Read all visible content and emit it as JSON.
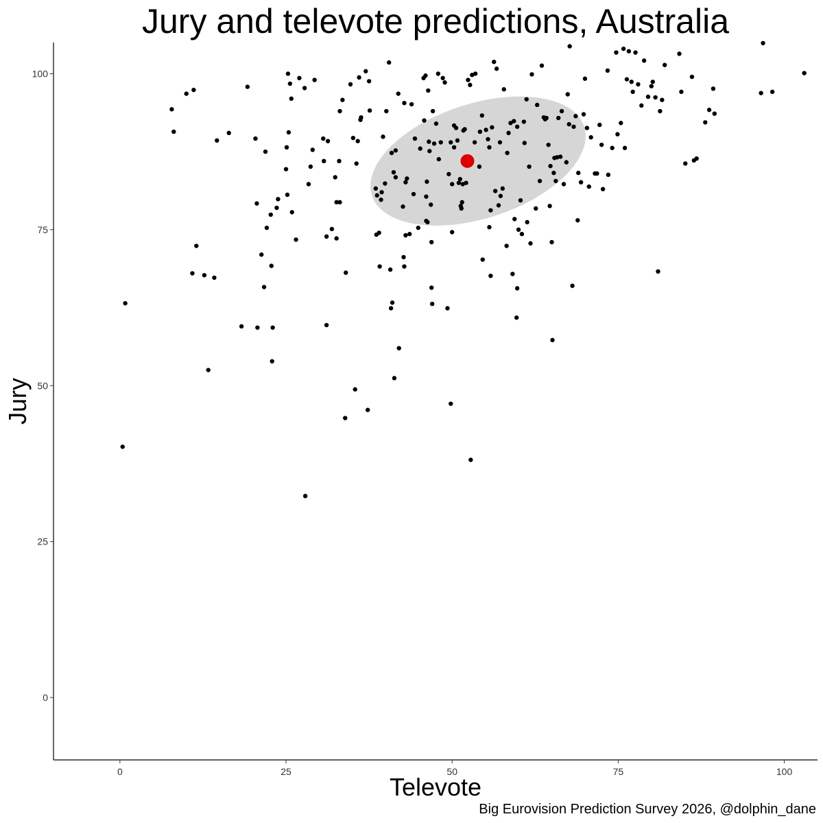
{
  "chart_data": {
    "type": "scatter",
    "title": "Jury and televote predictions, Australia",
    "xlabel": "Televote",
    "ylabel": "Jury",
    "caption": "Big Eurovision Prediction Survey 2026, @dolphin_dane",
    "xlim": [
      -10,
      105
    ],
    "ylim": [
      -10,
      105
    ],
    "xticks": [
      0,
      25,
      50,
      75,
      100
    ],
    "yticks": [
      0,
      25,
      50,
      75,
      100
    ],
    "grid": false,
    "colors": {
      "points": "#000000",
      "mean": "#dd0000",
      "ellipse": "#d6d6d6"
    },
    "mean": {
      "x": 52.3,
      "y": 86.0
    },
    "ellipse": {
      "cx": 53.9,
      "cy": 86.0,
      "rx": 16.8,
      "ry": 9.2,
      "angle_deg": 18
    },
    "points": [
      [
        0.4,
        40.2
      ],
      [
        0.8,
        63.2
      ],
      [
        7.8,
        94.3
      ],
      [
        8.1,
        90.7
      ],
      [
        10.0,
        96.8
      ],
      [
        10.9,
        68.0
      ],
      [
        11.1,
        97.4
      ],
      [
        11.5,
        72.4
      ],
      [
        12.7,
        67.7
      ],
      [
        13.3,
        52.5
      ],
      [
        14.2,
        67.3
      ],
      [
        14.6,
        89.3
      ],
      [
        16.4,
        90.5
      ],
      [
        18.3,
        59.5
      ],
      [
        19.2,
        97.9
      ],
      [
        20.4,
        89.6
      ],
      [
        20.6,
        79.2
      ],
      [
        20.7,
        59.3
      ],
      [
        21.3,
        71.0
      ],
      [
        21.7,
        65.8
      ],
      [
        21.9,
        87.5
      ],
      [
        22.1,
        75.3
      ],
      [
        22.7,
        77.4
      ],
      [
        22.8,
        69.2
      ],
      [
        23.0,
        59.3
      ],
      [
        22.9,
        53.9
      ],
      [
        23.6,
        78.5
      ],
      [
        23.8,
        79.9
      ],
      [
        25.0,
        84.7
      ],
      [
        25.1,
        88.2
      ],
      [
        25.2,
        80.6
      ],
      [
        25.3,
        100.0
      ],
      [
        25.4,
        90.6
      ],
      [
        25.6,
        98.4
      ],
      [
        25.8,
        96.0
      ],
      [
        25.9,
        77.8
      ],
      [
        26.5,
        73.4
      ],
      [
        27.0,
        99.3
      ],
      [
        27.8,
        97.7
      ],
      [
        27.9,
        32.3
      ],
      [
        28.4,
        82.3
      ],
      [
        28.7,
        85.1
      ],
      [
        29.0,
        87.8
      ],
      [
        29.3,
        99.0
      ],
      [
        30.6,
        89.6
      ],
      [
        30.7,
        86.0
      ],
      [
        31.1,
        59.7
      ],
      [
        31.1,
        73.9
      ],
      [
        31.3,
        89.2
      ],
      [
        31.9,
        75.1
      ],
      [
        32.4,
        83.4
      ],
      [
        32.6,
        79.4
      ],
      [
        32.6,
        73.6
      ],
      [
        33.0,
        86.0
      ],
      [
        33.1,
        79.4
      ],
      [
        33.1,
        94.0
      ],
      [
        33.5,
        95.8
      ],
      [
        33.9,
        44.8
      ],
      [
        34.0,
        68.1
      ],
      [
        34.7,
        98.3
      ],
      [
        35.1,
        89.7
      ],
      [
        35.4,
        49.4
      ],
      [
        35.6,
        85.6
      ],
      [
        35.8,
        89.2
      ],
      [
        36.0,
        99.4
      ],
      [
        36.2,
        92.6
      ],
      [
        36.3,
        93.0
      ],
      [
        37.0,
        100.4
      ],
      [
        37.3,
        46.1
      ],
      [
        37.5,
        98.8
      ],
      [
        37.6,
        94.1
      ],
      [
        38.5,
        81.6
      ],
      [
        38.6,
        74.2
      ],
      [
        38.7,
        80.5
      ],
      [
        39.0,
        74.5
      ],
      [
        39.1,
        69.1
      ],
      [
        39.3,
        79.8
      ],
      [
        39.4,
        81.0
      ],
      [
        39.6,
        89.9
      ],
      [
        39.9,
        82.4
      ],
      [
        40.1,
        94.0
      ],
      [
        40.5,
        101.8
      ],
      [
        40.7,
        68.6
      ],
      [
        40.8,
        62.4
      ],
      [
        40.9,
        87.3
      ],
      [
        41.0,
        63.3
      ],
      [
        41.2,
        84.2
      ],
      [
        41.3,
        51.2
      ],
      [
        41.5,
        87.7
      ],
      [
        41.5,
        83.4
      ],
      [
        41.9,
        96.8
      ],
      [
        42.0,
        56.0
      ],
      [
        42.6,
        78.7
      ],
      [
        42.7,
        70.6
      ],
      [
        42.8,
        69.1
      ],
      [
        42.8,
        95.3
      ],
      [
        43.0,
        74.1
      ],
      [
        43.0,
        82.6
      ],
      [
        43.2,
        83.2
      ],
      [
        43.6,
        74.3
      ],
      [
        43.9,
        95.1
      ],
      [
        44.2,
        80.7
      ],
      [
        44.4,
        89.6
      ],
      [
        44.9,
        75.3
      ],
      [
        45.2,
        88.0
      ],
      [
        45.7,
        99.3
      ],
      [
        45.8,
        92.5
      ],
      [
        46.0,
        99.7
      ],
      [
        46.1,
        76.4
      ],
      [
        46.1,
        80.3
      ],
      [
        46.2,
        82.7
      ],
      [
        46.3,
        76.2
      ],
      [
        46.4,
        97.3
      ],
      [
        46.5,
        89.1
      ],
      [
        46.6,
        87.6
      ],
      [
        46.8,
        79.0
      ],
      [
        46.9,
        73.0
      ],
      [
        46.9,
        65.7
      ],
      [
        47.0,
        63.1
      ],
      [
        47.1,
        94.0
      ],
      [
        47.3,
        88.8
      ],
      [
        47.6,
        92.0
      ],
      [
        47.9,
        100.0
      ],
      [
        48.0,
        86.3
      ],
      [
        48.3,
        89.0
      ],
      [
        48.6,
        99.3
      ],
      [
        48.9,
        98.6
      ],
      [
        49.3,
        62.4
      ],
      [
        49.5,
        83.9
      ],
      [
        49.8,
        47.1
      ],
      [
        49.8,
        89.0
      ],
      [
        50.0,
        82.3
      ],
      [
        50.0,
        74.6
      ],
      [
        50.3,
        91.7
      ],
      [
        50.3,
        88.2
      ],
      [
        50.6,
        91.3
      ],
      [
        50.8,
        89.3
      ],
      [
        51.0,
        82.5
      ],
      [
        51.2,
        83.1
      ],
      [
        51.3,
        78.8
      ],
      [
        51.4,
        78.4
      ],
      [
        51.5,
        79.4
      ],
      [
        51.6,
        82.3
      ],
      [
        51.7,
        90.9
      ],
      [
        51.9,
        91.1
      ],
      [
        52.1,
        82.5
      ],
      [
        52.4,
        99.0
      ],
      [
        52.7,
        98.2
      ],
      [
        52.8,
        38.1
      ],
      [
        53.0,
        99.8
      ],
      [
        53.4,
        89.0
      ],
      [
        53.5,
        100.0
      ],
      [
        54.1,
        85.1
      ],
      [
        54.2,
        90.7
      ],
      [
        54.5,
        93.3
      ],
      [
        54.6,
        70.2
      ],
      [
        55.1,
        91.0
      ],
      [
        55.4,
        89.5
      ],
      [
        55.6,
        88.2
      ],
      [
        55.6,
        75.4
      ],
      [
        55.8,
        78.1
      ],
      [
        55.8,
        67.6
      ],
      [
        56.0,
        91.4
      ],
      [
        56.3,
        101.9
      ],
      [
        56.5,
        81.2
      ],
      [
        56.7,
        100.8
      ],
      [
        57.0,
        78.9
      ],
      [
        57.2,
        89.0
      ],
      [
        57.3,
        80.4
      ],
      [
        57.6,
        81.6
      ],
      [
        57.8,
        97.5
      ],
      [
        58.2,
        72.4
      ],
      [
        58.3,
        87.3
      ],
      [
        58.5,
        90.5
      ],
      [
        58.8,
        92.1
      ],
      [
        59.1,
        67.9
      ],
      [
        59.3,
        92.4
      ],
      [
        59.4,
        76.7
      ],
      [
        59.7,
        60.9
      ],
      [
        59.8,
        91.5
      ],
      [
        59.8,
        65.6
      ],
      [
        60.0,
        75.0
      ],
      [
        60.3,
        79.7
      ],
      [
        60.5,
        74.3
      ],
      [
        60.8,
        92.3
      ],
      [
        60.9,
        88.9
      ],
      [
        61.2,
        95.9
      ],
      [
        61.3,
        76.2
      ],
      [
        61.6,
        85.1
      ],
      [
        61.8,
        72.8
      ],
      [
        62.0,
        99.9
      ],
      [
        62.6,
        78.4
      ],
      [
        62.8,
        95.0
      ],
      [
        63.2,
        82.8
      ],
      [
        63.5,
        101.3
      ],
      [
        63.8,
        93.0
      ],
      [
        64.0,
        92.7
      ],
      [
        64.2,
        92.9
      ],
      [
        64.5,
        88.6
      ],
      [
        64.7,
        78.8
      ],
      [
        64.8,
        85.2
      ],
      [
        65.0,
        73.0
      ],
      [
        65.1,
        57.3
      ],
      [
        65.3,
        84.1
      ],
      [
        65.4,
        86.5
      ],
      [
        65.6,
        82.8
      ],
      [
        65.8,
        86.6
      ],
      [
        66.0,
        92.9
      ],
      [
        66.3,
        86.7
      ],
      [
        66.5,
        94.0
      ],
      [
        66.8,
        82.3
      ],
      [
        67.2,
        85.8
      ],
      [
        67.4,
        96.7
      ],
      [
        67.6,
        91.9
      ],
      [
        67.7,
        104.4
      ],
      [
        68.1,
        66.0
      ],
      [
        68.3,
        91.5
      ],
      [
        68.6,
        93.2
      ],
      [
        68.9,
        76.5
      ],
      [
        69.0,
        84.1
      ],
      [
        69.4,
        82.6
      ],
      [
        69.8,
        93.5
      ],
      [
        70.0,
        99.2
      ],
      [
        70.3,
        91.3
      ],
      [
        70.6,
        81.9
      ],
      [
        70.9,
        89.8
      ],
      [
        71.5,
        84.0
      ],
      [
        71.8,
        84.0
      ],
      [
        72.2,
        91.8
      ],
      [
        72.5,
        88.6
      ],
      [
        72.7,
        81.5
      ],
      [
        73.4,
        100.5
      ],
      [
        73.5,
        83.8
      ],
      [
        74.1,
        88.1
      ],
      [
        74.7,
        103.4
      ],
      [
        74.9,
        90.3
      ],
      [
        75.4,
        92.1
      ],
      [
        75.8,
        104.0
      ],
      [
        76.0,
        88.1
      ],
      [
        76.3,
        99.1
      ],
      [
        76.6,
        103.6
      ],
      [
        77.0,
        98.7
      ],
      [
        77.2,
        97.1
      ],
      [
        77.6,
        103.4
      ],
      [
        78.0,
        98.3
      ],
      [
        78.5,
        94.9
      ],
      [
        78.9,
        102.1
      ],
      [
        79.5,
        96.3
      ],
      [
        80.0,
        98.0
      ],
      [
        80.2,
        98.7
      ],
      [
        80.6,
        96.2
      ],
      [
        81.0,
        68.3
      ],
      [
        81.3,
        94.0
      ],
      [
        81.6,
        95.8
      ],
      [
        82.0,
        101.4
      ],
      [
        84.2,
        103.2
      ],
      [
        84.5,
        97.1
      ],
      [
        85.1,
        85.6
      ],
      [
        86.1,
        99.5
      ],
      [
        86.4,
        86.1
      ],
      [
        86.8,
        86.4
      ],
      [
        88.1,
        92.2
      ],
      [
        88.7,
        94.2
      ],
      [
        89.3,
        97.6
      ],
      [
        89.5,
        93.6
      ],
      [
        96.5,
        96.9
      ],
      [
        96.8,
        104.9
      ],
      [
        98.2,
        97.1
      ],
      [
        103.0,
        100.1
      ]
    ]
  }
}
